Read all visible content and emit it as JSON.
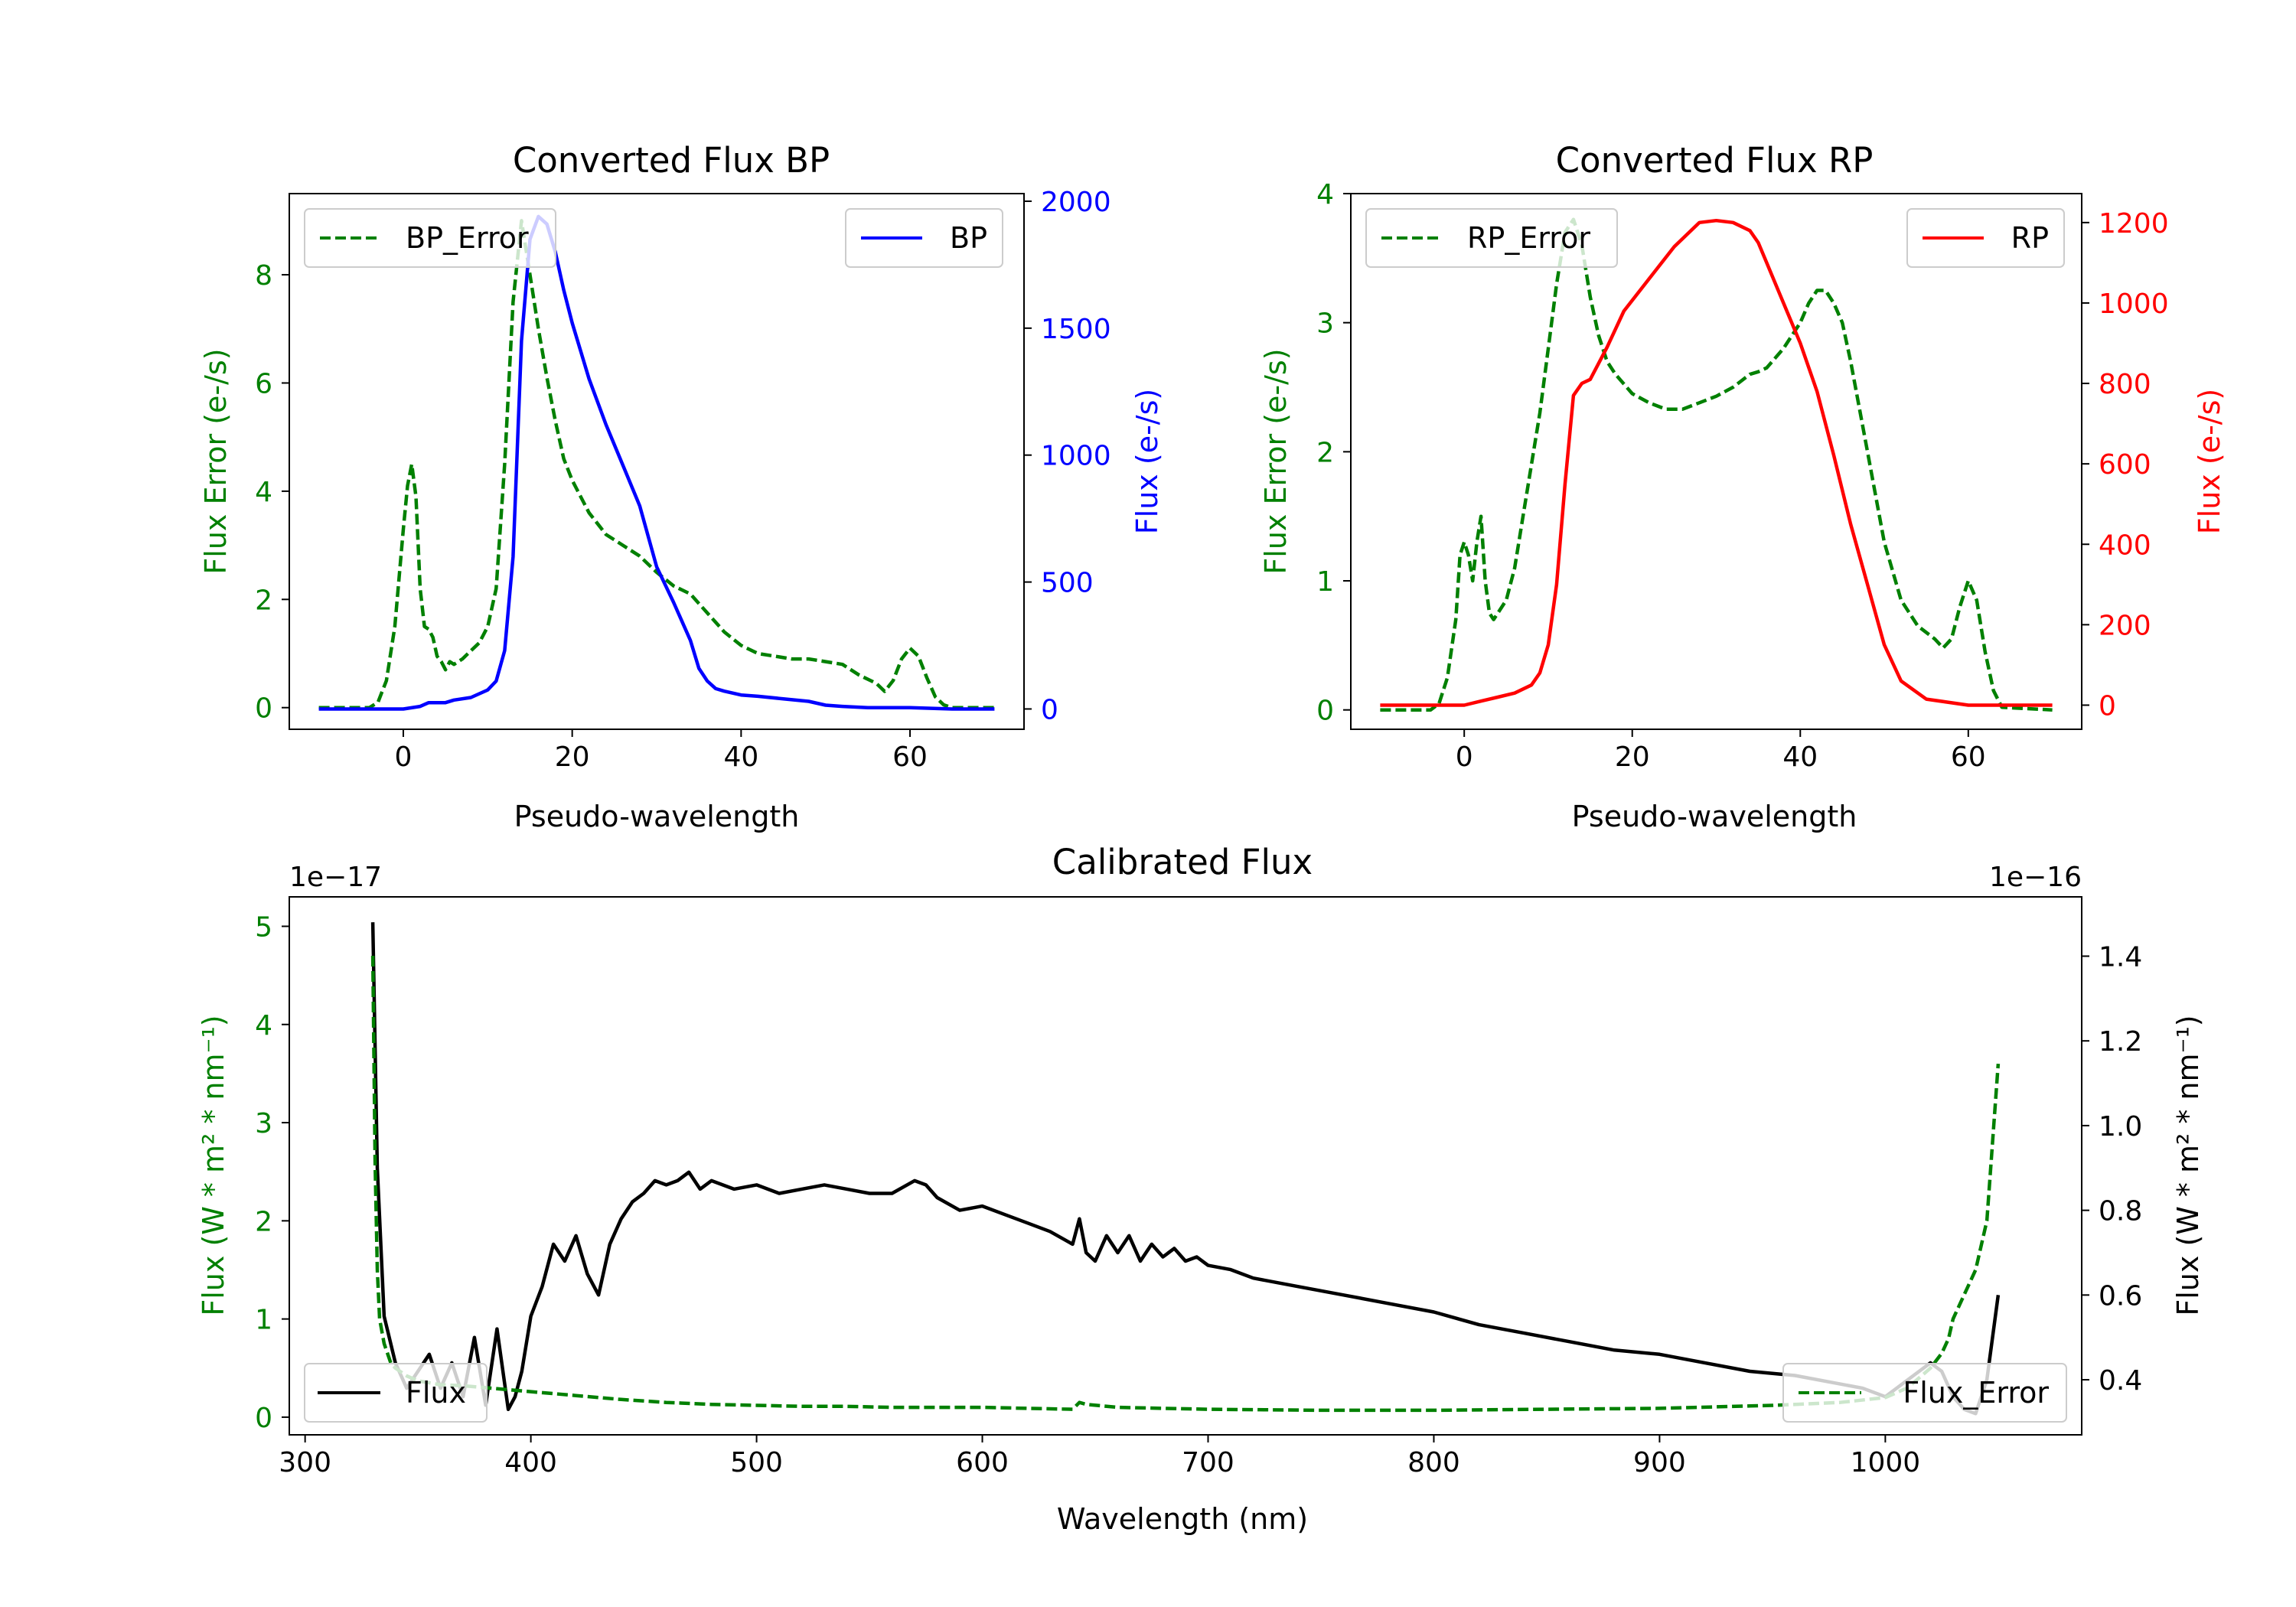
{
  "chart_data": [
    {
      "id": "bp",
      "type": "line",
      "title": "Converted Flux BP",
      "xlabel": "Pseudo-wavelength",
      "ylabel_left": "Flux Error (e-/s)",
      "ylabel_right": "Flux (e-/s)",
      "xlim": [
        -13.5,
        73.5
      ],
      "xticks": [
        "0",
        "20",
        "40",
        "60"
      ],
      "xtick_values": [
        0,
        20,
        40,
        60
      ],
      "ylim_left": [
        -0.4,
        9.5
      ],
      "yticks_left": [
        "0",
        "2",
        "4",
        "6",
        "8"
      ],
      "ytick_values_left": [
        0,
        2,
        4,
        6,
        8
      ],
      "ylim_right": [
        -80,
        2030
      ],
      "yticks_right": [
        "0",
        "500",
        "1000",
        "1500",
        "2000"
      ],
      "ytick_values_right": [
        0,
        500,
        1000,
        1500,
        2000
      ],
      "series": [
        {
          "name": "BP_Error",
          "axis": "left",
          "style": "dashed",
          "color": "#008000",
          "x": [
            -10,
            -4,
            -3,
            -2,
            -1,
            0,
            0.5,
            1,
            1.5,
            2,
            2.5,
            3,
            3.5,
            4,
            4.5,
            5,
            5.5,
            6,
            7,
            8,
            9,
            10,
            11,
            12,
            13,
            14,
            15,
            16,
            17,
            18,
            19,
            20,
            21,
            22,
            23,
            24,
            26,
            28,
            30,
            32,
            34,
            36,
            38,
            40,
            42,
            44,
            46,
            48,
            50,
            52,
            54,
            56,
            57,
            58,
            59,
            60,
            61,
            62,
            63,
            64,
            65,
            70
          ],
          "values": [
            0,
            0,
            0.1,
            0.5,
            1.5,
            3.3,
            4.1,
            4.5,
            3.9,
            2.2,
            1.5,
            1.45,
            1.3,
            0.95,
            0.85,
            0.7,
            0.85,
            0.8,
            0.9,
            1.05,
            1.2,
            1.5,
            2.2,
            4.5,
            7.5,
            9.0,
            8.0,
            7.0,
            6.1,
            5.3,
            4.6,
            4.2,
            3.9,
            3.6,
            3.4,
            3.2,
            3.0,
            2.8,
            2.5,
            2.25,
            2.1,
            1.75,
            1.4,
            1.15,
            1.0,
            0.95,
            0.9,
            0.9,
            0.85,
            0.8,
            0.6,
            0.45,
            0.3,
            0.5,
            0.9,
            1.1,
            0.95,
            0.55,
            0.2,
            0.05,
            0,
            0
          ]
        },
        {
          "name": "BP",
          "axis": "right",
          "style": "solid",
          "color": "#0000ff",
          "x": [
            -10,
            -5,
            -1,
            0,
            2,
            3,
            5,
            6,
            8,
            10,
            11,
            12,
            13,
            14,
            15,
            16,
            17,
            18,
            19,
            20,
            22,
            24,
            26,
            28,
            30,
            32,
            34,
            35,
            36,
            37,
            38,
            40,
            42,
            45,
            48,
            50,
            52,
            55,
            60,
            65,
            70
          ],
          "values": [
            0,
            0,
            0,
            0,
            10,
            25,
            25,
            35,
            45,
            75,
            110,
            230,
            600,
            1450,
            1850,
            1940,
            1910,
            1800,
            1650,
            1520,
            1300,
            1120,
            960,
            800,
            560,
            420,
            270,
            160,
            110,
            80,
            70,
            55,
            50,
            40,
            30,
            15,
            10,
            5,
            5,
            0,
            0
          ]
        }
      ]
    },
    {
      "id": "rp",
      "type": "line",
      "title": "Converted Flux RP",
      "xlabel": "Pseudo-wavelength",
      "ylabel_left": "Flux Error (e-/s)",
      "ylabel_right": "Flux (e-/s)",
      "xlim": [
        -13.5,
        73.5
      ],
      "xticks": [
        "0",
        "20",
        "40",
        "60"
      ],
      "xtick_values": [
        0,
        20,
        40,
        60
      ],
      "ylim_left": [
        -0.15,
        4.0
      ],
      "yticks_left": [
        "0",
        "1",
        "2",
        "3",
        "4"
      ],
      "ytick_values_left": [
        0,
        1,
        2,
        3,
        4
      ],
      "ylim_right": [
        -60,
        1272
      ],
      "yticks_right": [
        "0",
        "200",
        "400",
        "600",
        "800",
        "1000",
        "1200"
      ],
      "ytick_values_right": [
        0,
        200,
        400,
        600,
        800,
        1000,
        1200
      ],
      "series": [
        {
          "name": "RP_Error",
          "axis": "left",
          "style": "dashed",
          "color": "#008000",
          "x": [
            -10,
            -4,
            -3,
            -2,
            -1,
            -0.5,
            0,
            0.5,
            1,
            1.5,
            2,
            2.5,
            3,
            3.5,
            4,
            5,
            6,
            7,
            8,
            9,
            10,
            11,
            12,
            13,
            14,
            15,
            16,
            17,
            18,
            20,
            22,
            24,
            26,
            28,
            30,
            32,
            33,
            34,
            35,
            36,
            38,
            40,
            41,
            42,
            43,
            44,
            45,
            46,
            48,
            50,
            52,
            54,
            56,
            57,
            58,
            59,
            60,
            61,
            62,
            63,
            64,
            70
          ],
          "values": [
            0,
            0,
            0.05,
            0.25,
            0.7,
            1.2,
            1.3,
            1.2,
            1.0,
            1.3,
            1.5,
            1.0,
            0.75,
            0.7,
            0.75,
            0.85,
            1.1,
            1.5,
            1.9,
            2.3,
            2.8,
            3.3,
            3.7,
            3.8,
            3.6,
            3.2,
            2.9,
            2.7,
            2.6,
            2.45,
            2.38,
            2.33,
            2.33,
            2.38,
            2.43,
            2.5,
            2.55,
            2.6,
            2.62,
            2.65,
            2.8,
            3.0,
            3.15,
            3.25,
            3.25,
            3.15,
            3.0,
            2.7,
            2.0,
            1.3,
            0.85,
            0.65,
            0.55,
            0.48,
            0.55,
            0.8,
            1.0,
            0.85,
            0.45,
            0.15,
            0.02,
            0
          ]
        },
        {
          "name": "RP",
          "axis": "right",
          "style": "solid",
          "color": "#ff0000",
          "x": [
            -10,
            -5,
            0,
            2,
            4,
            6,
            8,
            9,
            10,
            11,
            12,
            13,
            14,
            15,
            17,
            19,
            22,
            25,
            28,
            30,
            32,
            34,
            35,
            36,
            38,
            40,
            42,
            44,
            46,
            48,
            50,
            52,
            55,
            60,
            65,
            70
          ],
          "values": [
            0,
            0,
            0,
            10,
            20,
            30,
            50,
            80,
            150,
            300,
            550,
            770,
            800,
            810,
            890,
            980,
            1060,
            1140,
            1200,
            1205,
            1200,
            1180,
            1150,
            1100,
            1000,
            900,
            780,
            620,
            450,
            300,
            150,
            60,
            15,
            0,
            0,
            0
          ]
        }
      ]
    },
    {
      "id": "calibrated",
      "type": "line",
      "title": "Calibrated Flux",
      "xlabel": "Wavelength (nm)",
      "ylabel_left": "Flux (W * m² * nm⁻¹)",
      "ylabel_right": "Flux (W * m² * nm⁻¹)",
      "offset_left": "1e−17",
      "offset_right": "1e−16",
      "xlim": [
        293,
        1087
      ],
      "xticks": [
        "300",
        "400",
        "500",
        "600",
        "700",
        "800",
        "900",
        "1000"
      ],
      "xtick_values": [
        300,
        400,
        500,
        600,
        700,
        800,
        900,
        1000
      ],
      "ylim_left": [
        -0.18,
        5.3
      ],
      "yticks_left": [
        "0",
        "1",
        "2",
        "3",
        "4",
        "5"
      ],
      "ytick_values_left": [
        0,
        1,
        2,
        3,
        4,
        5
      ],
      "ylim_right": [
        0.27,
        1.54
      ],
      "yticks_right": [
        "0.4",
        "0.6",
        "0.8",
        "1.0",
        "1.2",
        "1.4"
      ],
      "ytick_values_right": [
        0.4,
        0.6,
        0.8,
        1.0,
        1.2,
        1.4
      ],
      "series": [
        {
          "name": "Flux",
          "axis": "right",
          "style": "solid",
          "color": "#000000",
          "x": [
            330,
            332,
            335,
            340,
            345,
            350,
            355,
            360,
            365,
            370,
            375,
            380,
            385,
            390,
            393,
            396,
            400,
            405,
            410,
            415,
            420,
            425,
            430,
            435,
            440,
            445,
            450,
            455,
            460,
            465,
            470,
            475,
            480,
            490,
            500,
            510,
            520,
            530,
            540,
            550,
            560,
            570,
            575,
            580,
            590,
            600,
            610,
            620,
            630,
            640,
            643,
            646,
            650,
            655,
            660,
            665,
            670,
            675,
            680,
            685,
            690,
            695,
            700,
            710,
            720,
            740,
            760,
            780,
            800,
            820,
            840,
            860,
            880,
            900,
            920,
            940,
            960,
            980,
            990,
            1000,
            1010,
            1020,
            1025,
            1030,
            1035,
            1040,
            1045,
            1050
          ],
          "values": [
            1.48,
            0.9,
            0.55,
            0.44,
            0.38,
            0.42,
            0.46,
            0.38,
            0.44,
            0.36,
            0.5,
            0.34,
            0.52,
            0.33,
            0.36,
            0.42,
            0.55,
            0.62,
            0.72,
            0.68,
            0.74,
            0.65,
            0.6,
            0.72,
            0.78,
            0.82,
            0.84,
            0.87,
            0.86,
            0.87,
            0.89,
            0.85,
            0.87,
            0.85,
            0.86,
            0.84,
            0.85,
            0.86,
            0.85,
            0.84,
            0.84,
            0.87,
            0.86,
            0.83,
            0.8,
            0.81,
            0.79,
            0.77,
            0.75,
            0.72,
            0.78,
            0.7,
            0.68,
            0.74,
            0.7,
            0.74,
            0.68,
            0.72,
            0.69,
            0.71,
            0.68,
            0.69,
            0.67,
            0.66,
            0.64,
            0.62,
            0.6,
            0.58,
            0.56,
            0.53,
            0.51,
            0.49,
            0.47,
            0.46,
            0.44,
            0.42,
            0.41,
            0.39,
            0.38,
            0.36,
            0.4,
            0.44,
            0.42,
            0.36,
            0.33,
            0.32,
            0.4,
            0.6
          ]
        },
        {
          "name": "Flux_Error",
          "axis": "left",
          "style": "dashed",
          "color": "#008000",
          "x": [
            330,
            331,
            332,
            333,
            335,
            338,
            340,
            345,
            350,
            360,
            370,
            380,
            390,
            400,
            420,
            440,
            460,
            480,
            500,
            520,
            540,
            560,
            580,
            600,
            620,
            640,
            643,
            646,
            660,
            680,
            700,
            750,
            800,
            850,
            900,
            950,
            980,
            1000,
            1010,
            1015,
            1020,
            1025,
            1028,
            1030,
            1035,
            1040,
            1045,
            1050
          ],
          "values": [
            4.7,
            2.6,
            1.5,
            1.0,
            0.75,
            0.55,
            0.5,
            0.42,
            0.37,
            0.33,
            0.32,
            0.3,
            0.28,
            0.26,
            0.22,
            0.18,
            0.15,
            0.13,
            0.12,
            0.11,
            0.11,
            0.1,
            0.1,
            0.1,
            0.09,
            0.08,
            0.15,
            0.13,
            0.1,
            0.09,
            0.08,
            0.07,
            0.07,
            0.08,
            0.09,
            0.12,
            0.15,
            0.2,
            0.3,
            0.4,
            0.5,
            0.65,
            0.8,
            1.0,
            1.25,
            1.5,
            2.0,
            3.6
          ]
        }
      ]
    }
  ]
}
